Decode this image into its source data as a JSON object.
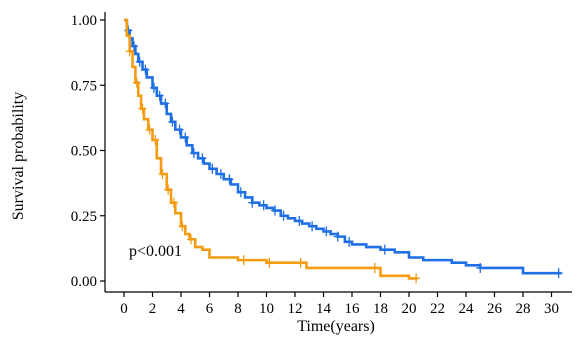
{
  "chart_data": {
    "type": "line",
    "subtype": "kaplan-meier",
    "title": "",
    "xlabel": "Time(years)",
    "ylabel": "Survival probability",
    "xlim": [
      0,
      31
    ],
    "ylim": [
      0,
      1
    ],
    "xticks": [
      0,
      2,
      4,
      6,
      8,
      10,
      12,
      14,
      16,
      18,
      20,
      22,
      24,
      26,
      28,
      30
    ],
    "yticks": [
      "0.00",
      "0.25",
      "0.50",
      "0.75",
      "1.00"
    ],
    "grid": false,
    "legend": "none",
    "annotation": "p<0.001",
    "series": [
      {
        "color": "#1f6fe5",
        "x": [
          0,
          0.2,
          0.4,
          0.6,
          0.8,
          1.0,
          1.3,
          1.6,
          2.0,
          2.3,
          2.6,
          3.0,
          3.3,
          3.6,
          4.0,
          4.4,
          4.8,
          5.2,
          5.6,
          6.0,
          6.5,
          7.0,
          7.5,
          8.0,
          8.5,
          9.0,
          9.5,
          10.0,
          10.5,
          11.0,
          11.5,
          12.0,
          12.5,
          13.0,
          13.5,
          14.0,
          14.5,
          15.0,
          15.5,
          16.0,
          17.0,
          18.0,
          19.0,
          20.0,
          21.0,
          22.0,
          23.0,
          24.0,
          25.0,
          26.0,
          27.0,
          28.0,
          29.0,
          30.0,
          30.7
        ],
        "y": [
          1.0,
          0.96,
          0.93,
          0.9,
          0.87,
          0.84,
          0.81,
          0.78,
          0.74,
          0.71,
          0.68,
          0.64,
          0.61,
          0.58,
          0.55,
          0.52,
          0.49,
          0.47,
          0.45,
          0.43,
          0.41,
          0.39,
          0.37,
          0.34,
          0.32,
          0.3,
          0.29,
          0.28,
          0.27,
          0.25,
          0.24,
          0.23,
          0.22,
          0.21,
          0.2,
          0.19,
          0.18,
          0.17,
          0.15,
          0.14,
          0.13,
          0.12,
          0.11,
          0.09,
          0.08,
          0.08,
          0.07,
          0.06,
          0.05,
          0.05,
          0.05,
          0.03,
          0.03,
          0.03,
          0.03
        ],
        "censored": [
          0.3,
          0.7,
          1.1,
          1.5,
          2.1,
          2.5,
          2.9,
          3.4,
          3.9,
          4.3,
          4.9,
          5.5,
          6.2,
          6.8,
          7.4,
          8.2,
          9.0,
          9.8,
          10.6,
          11.2,
          12.3,
          13.2,
          14.2,
          15.0,
          15.8,
          18.3,
          25.0,
          30.5
        ]
      },
      {
        "color": "#f39c12",
        "x": [
          0,
          0.2,
          0.4,
          0.6,
          0.8,
          1.0,
          1.2,
          1.4,
          1.7,
          2.0,
          2.3,
          2.6,
          3.0,
          3.3,
          3.6,
          4.0,
          4.3,
          4.6,
          5.0,
          5.5,
          6.0,
          7.0,
          8.0,
          9.0,
          10.0,
          11.0,
          12.0,
          12.8,
          14.0,
          16.0,
          18.0,
          19.0,
          20.0,
          20.6
        ],
        "y": [
          1.0,
          0.94,
          0.88,
          0.82,
          0.76,
          0.71,
          0.66,
          0.62,
          0.58,
          0.54,
          0.47,
          0.41,
          0.35,
          0.3,
          0.26,
          0.21,
          0.18,
          0.16,
          0.13,
          0.12,
          0.09,
          0.09,
          0.08,
          0.08,
          0.07,
          0.07,
          0.07,
          0.05,
          0.05,
          0.05,
          0.02,
          0.02,
          0.01,
          0.01
        ],
        "censored": [
          0.4,
          0.9,
          1.3,
          1.8,
          2.2,
          2.7,
          3.1,
          3.5,
          4.1,
          4.7,
          8.4,
          10.2,
          12.4,
          17.6,
          20.5
        ]
      }
    ]
  }
}
